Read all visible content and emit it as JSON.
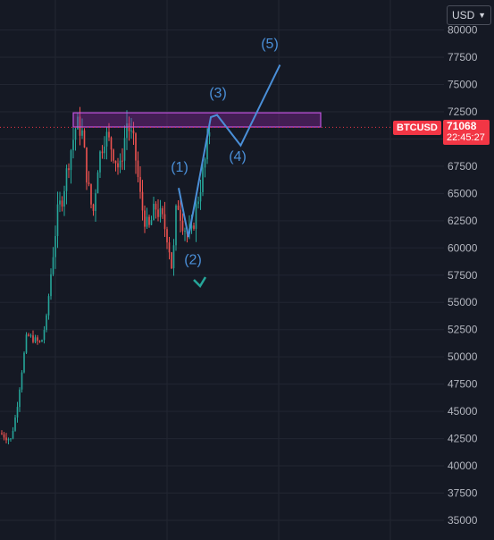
{
  "currency_selector": {
    "label": "USD"
  },
  "symbol_badge": {
    "symbol": "BTCUSD",
    "price": "71068",
    "countdown": "22:45:27"
  },
  "chart_data": {
    "type": "candlestick",
    "symbol": "BTCUSD",
    "last_price": 71068,
    "y_axis": {
      "ticks": [
        35000,
        37500,
        40000,
        42500,
        45000,
        47500,
        50000,
        52500,
        55000,
        57500,
        60000,
        62500,
        65000,
        67500,
        70000,
        72500,
        75000,
        77500,
        80000
      ],
      "tick_labels": [
        "35000",
        "37500",
        "40000",
        "42500",
        "45000",
        "47500",
        "50000",
        "52500",
        "55000",
        "57500",
        "60000",
        "62500",
        "65000",
        "67500",
        "70000",
        "72500",
        "75000",
        "77500",
        "80000"
      ],
      "range": [
        34000,
        83500
      ]
    },
    "grid": true,
    "resistance_zone": {
      "low": 71100,
      "high": 72400
    },
    "wave_labels": [
      {
        "label": "(1)",
        "price": 67000
      },
      {
        "label": "(2)",
        "price": 58500
      },
      {
        "label": "(3)",
        "price": 73800
      },
      {
        "label": "(4)",
        "price": 68000
      },
      {
        "label": "(5)",
        "price": 78300
      }
    ],
    "projection_path": [
      {
        "bar": 0,
        "price": 72200
      },
      {
        "bar": 6,
        "price": 69400
      },
      {
        "bar": 16,
        "price": 76800
      }
    ],
    "colors": {
      "up": "#26a69a",
      "down": "#ef5350",
      "zone": "#9c27b0",
      "projection": "#4a8fd8",
      "price_line": "#f23645"
    }
  }
}
